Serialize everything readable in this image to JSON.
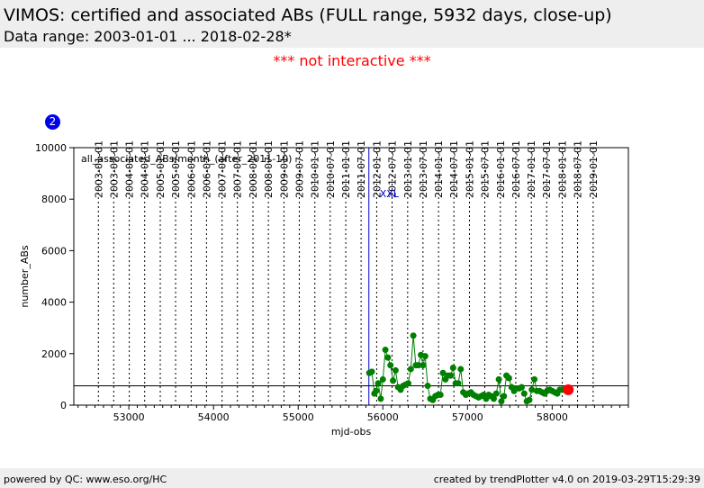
{
  "header": {
    "title": "VIMOS: certified and associated ABs (FULL range, 5932 days, close-up)",
    "subtitle": "Data range: 2003-01-01 ... 2018-02-28*"
  },
  "notice": "*** not interactive ***",
  "badge": "2",
  "footer": {
    "left": "powered by QC: www.eso.org/HC",
    "right": "created by trendPlotter v4.0 on 2019-03-29T15:29:39"
  },
  "colors": {
    "series": "#007f00",
    "latest": "#ff0000",
    "marker_line": "#0000cc",
    "reference_line": "#000000"
  },
  "chart_data": {
    "type": "scatter",
    "xlabel": "mjd-obs",
    "ylabel": "number_ABs",
    "xlim": [
      52350,
      58900
    ],
    "ylim": [
      0,
      10000
    ],
    "x_ticks": [
      53000,
      54000,
      55000,
      56000,
      57000,
      58000
    ],
    "y_ticks": [
      0,
      2000,
      4000,
      6000,
      8000,
      10000
    ],
    "x_tick_labels": [
      "53000",
      "54000",
      "55000",
      "56000",
      "57000",
      "58000"
    ],
    "y_tick_labels": [
      "0",
      "2000",
      "4000",
      "6000",
      "8000",
      "10000"
    ],
    "date_ticks": [
      {
        "label": "2003-01-01",
        "mjd": 52640
      },
      {
        "label": "2003-07-01",
        "mjd": 52821
      },
      {
        "label": "2004-01-01",
        "mjd": 53005
      },
      {
        "label": "2004-07-01",
        "mjd": 53187
      },
      {
        "label": "2005-01-01",
        "mjd": 53371
      },
      {
        "label": "2005-07-01",
        "mjd": 53552
      },
      {
        "label": "2006-01-01",
        "mjd": 53736
      },
      {
        "label": "2006-07-01",
        "mjd": 53917
      },
      {
        "label": "2007-01-01",
        "mjd": 54101
      },
      {
        "label": "2007-07-01",
        "mjd": 54282
      },
      {
        "label": "2008-01-01",
        "mjd": 54466
      },
      {
        "label": "2008-07-01",
        "mjd": 54648
      },
      {
        "label": "2009-01-01",
        "mjd": 54832
      },
      {
        "label": "2009-07-01",
        "mjd": 55013
      },
      {
        "label": "2010-01-01",
        "mjd": 55197
      },
      {
        "label": "2010-07-01",
        "mjd": 55378
      },
      {
        "label": "2011-01-01",
        "mjd": 55562
      },
      {
        "label": "2011-07-01",
        "mjd": 55743
      },
      {
        "label": "2012-01-01",
        "mjd": 55927
      },
      {
        "label": "2012-07-01",
        "mjd": 56109
      },
      {
        "label": "2013-01-01",
        "mjd": 56293
      },
      {
        "label": "2013-07-01",
        "mjd": 56474
      },
      {
        "label": "2014-01-01",
        "mjd": 56658
      },
      {
        "label": "2014-07-01",
        "mjd": 56839
      },
      {
        "label": "2015-01-01",
        "mjd": 57023
      },
      {
        "label": "2015-07-01",
        "mjd": 57204
      },
      {
        "label": "2016-01-01",
        "mjd": 57388
      },
      {
        "label": "2016-07-01",
        "mjd": 57570
      },
      {
        "label": "2017-01-01",
        "mjd": 57754
      },
      {
        "label": "2017-07-01",
        "mjd": 57935
      },
      {
        "label": "2018-01-01",
        "mjd": 58119
      },
      {
        "label": "2018-07-01",
        "mjd": 58300
      },
      {
        "label": "2019-01-01",
        "mjd": 58484
      }
    ],
    "series_label": "all_associated_ABs/month_(after_2011-10)",
    "annotation": {
      "text": "XXL",
      "mjd": 55835
    },
    "reference_line_y": 750,
    "x": [
      55840,
      55870,
      55900,
      55920,
      55945,
      55975,
      56000,
      56030,
      56060,
      56090,
      56120,
      56150,
      56180,
      56210,
      56240,
      56270,
      56300,
      56330,
      56360,
      56390,
      56420,
      56450,
      56475,
      56500,
      56530,
      56560,
      56590,
      56620,
      56650,
      56680,
      56710,
      56740,
      56770,
      56800,
      56830,
      56860,
      56890,
      56920,
      56950,
      56980,
      57010,
      57040,
      57070,
      57100,
      57130,
      57160,
      57190,
      57220,
      57250,
      57280,
      57310,
      57340,
      57370,
      57400,
      57430,
      57460,
      57490,
      57520,
      57550,
      57580,
      57610,
      57640,
      57670,
      57700,
      57730,
      57760,
      57790,
      57820,
      57850,
      57880,
      57910,
      57940,
      57970,
      58000,
      58030,
      58060,
      58090,
      58120
    ],
    "y": [
      1250,
      1300,
      450,
      550,
      850,
      250,
      1000,
      2150,
      1850,
      1550,
      950,
      1350,
      700,
      600,
      750,
      800,
      850,
      1400,
      2700,
      1550,
      1550,
      1950,
      1550,
      1900,
      750,
      250,
      200,
      350,
      400,
      400,
      1250,
      1000,
      1150,
      1150,
      1450,
      850,
      850,
      1400,
      500,
      400,
      450,
      500,
      400,
      350,
      300,
      350,
      400,
      250,
      400,
      350,
      250,
      450,
      1000,
      150,
      350,
      1150,
      1050,
      700,
      550,
      650,
      650,
      700,
      450,
      150,
      200,
      600,
      1000,
      550,
      550,
      500,
      450,
      550,
      600,
      550,
      500,
      450,
      600,
      600
    ],
    "latest": {
      "x": 58190,
      "y": 600
    }
  }
}
